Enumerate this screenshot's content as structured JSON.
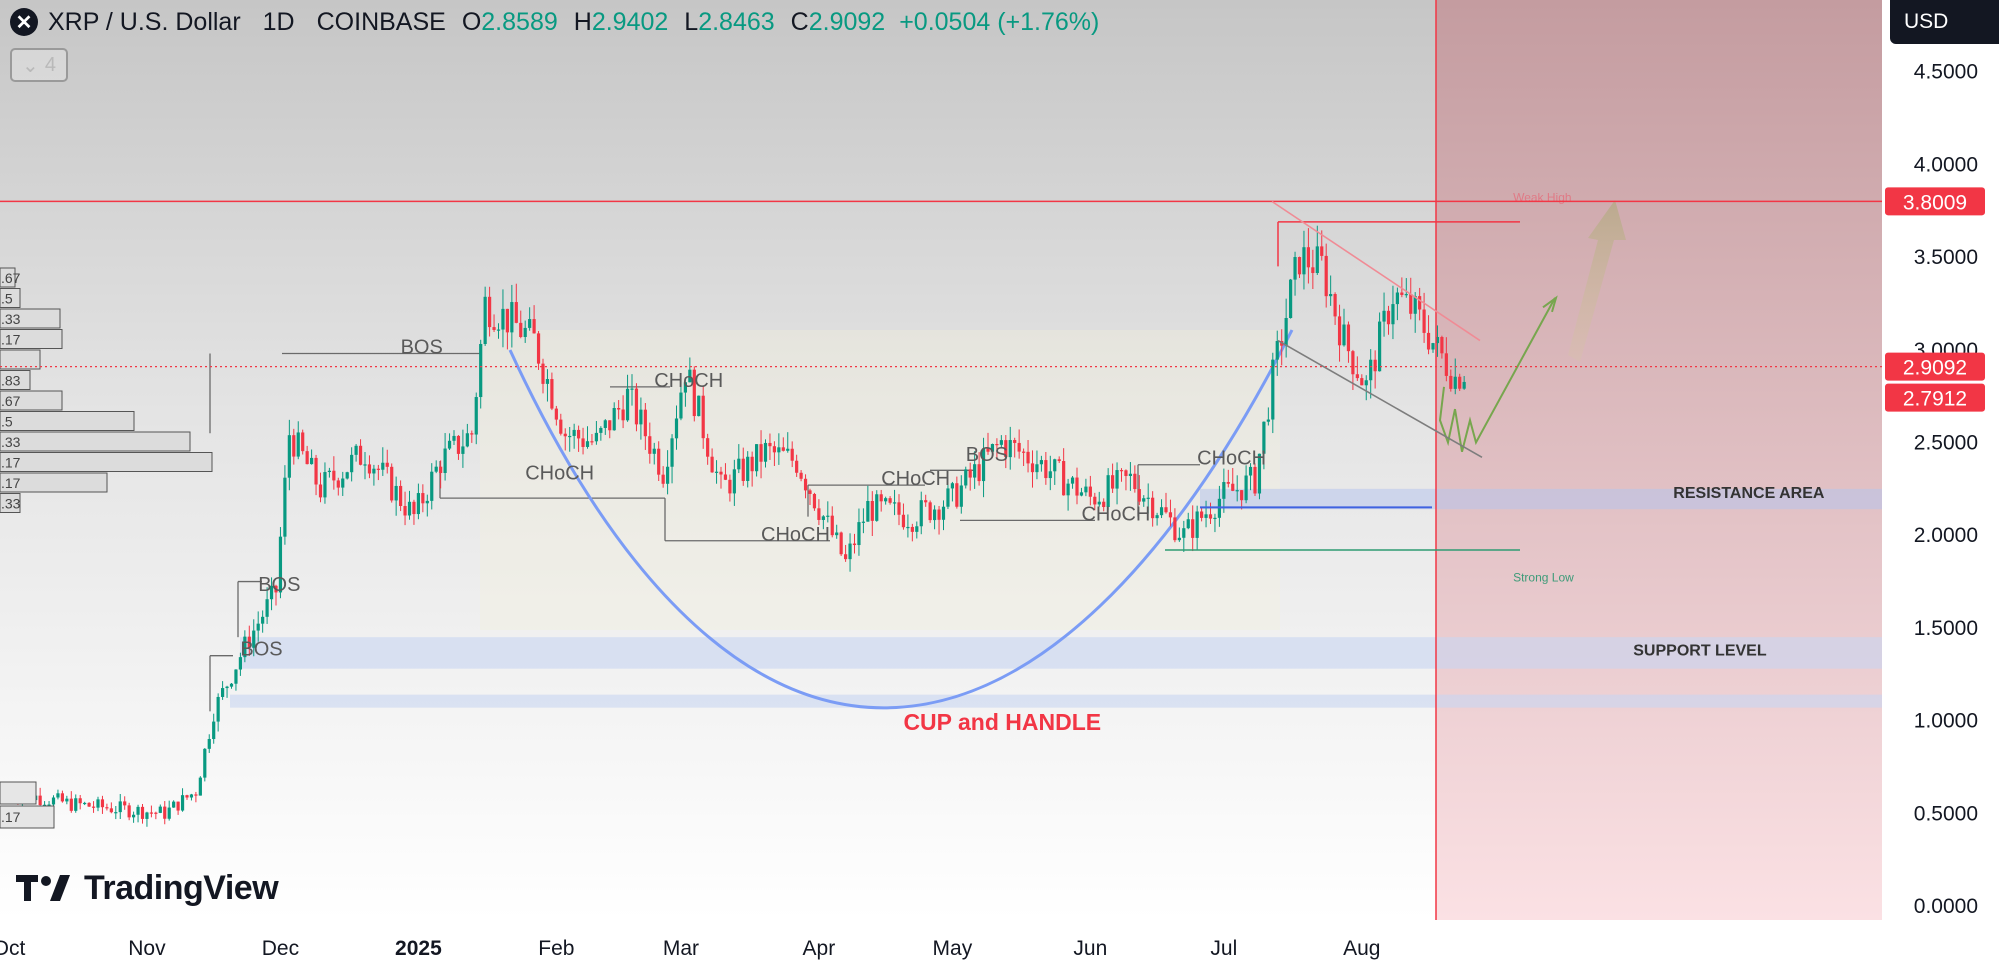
{
  "header": {
    "pair": "XRP / U.S. Dollar",
    "interval": "1D",
    "exchange": "COINBASE",
    "open_label": "O",
    "open": "2.8589",
    "high_label": "H",
    "high": "2.9402",
    "low_label": "L",
    "low": "2.8463",
    "close_label": "C",
    "close": "2.9092",
    "change": "+0.0504 (+1.76%)",
    "indicator_count": "4",
    "currency": "USD"
  },
  "brand": "TradingView",
  "colors": {
    "up": "#089981",
    "down": "#f23645",
    "accent_red": "#f23645",
    "cup_curve": "#7b9cf5",
    "projection": "#77a64e",
    "resistance_band": "#aab8e8"
  },
  "icons": [
    "xrp-logo-icon",
    "chevron-down-icon",
    "tradingview-logo-icon"
  ],
  "chart_data": {
    "type": "candlestick",
    "title": "",
    "x_ticks": [
      "Oct",
      "Nov",
      "Dec",
      "2025",
      "Feb",
      "Mar",
      "Apr",
      "May",
      "Jun",
      "Jul",
      "Aug"
    ],
    "y_ticks": [
      "0.0000",
      "0.5000",
      "1.0000",
      "1.5000",
      "2.0000",
      "2.5000",
      "3.0000",
      "3.5000",
      "4.0000",
      "4.5000"
    ],
    "ylim": [
      0,
      4.8
    ],
    "price_path": [
      [
        "2024-10-01",
        0.62
      ],
      [
        "2024-10-15",
        0.55
      ],
      [
        "2024-11-05",
        0.5
      ],
      [
        "2024-11-12",
        0.62
      ],
      [
        "2024-11-16",
        1.05
      ],
      [
        "2024-11-23",
        1.4
      ],
      [
        "2024-11-30",
        1.7
      ],
      [
        "2024-12-03",
        2.55
      ],
      [
        "2024-12-10",
        2.25
      ],
      [
        "2024-12-20",
        2.45
      ],
      [
        "2024-12-31",
        2.1
      ],
      [
        "2025-01-06",
        2.4
      ],
      [
        "2025-01-13",
        2.55
      ],
      [
        "2025-01-16",
        3.25
      ],
      [
        "2025-01-22",
        3.15
      ],
      [
        "2025-01-27",
        3.05
      ],
      [
        "2025-02-03",
        2.55
      ],
      [
        "2025-02-10",
        2.5
      ],
      [
        "2025-02-17",
        2.75
      ],
      [
        "2025-02-25",
        2.35
      ],
      [
        "2025-03-02",
        2.9
      ],
      [
        "2025-03-10",
        2.25
      ],
      [
        "2025-03-20",
        2.45
      ],
      [
        "2025-03-27",
        2.4
      ],
      [
        "2025-04-07",
        1.85
      ],
      [
        "2025-04-12",
        2.15
      ],
      [
        "2025-04-22",
        2.1
      ],
      [
        "2025-05-01",
        2.2
      ],
      [
        "2025-05-12",
        2.5
      ],
      [
        "2025-05-20",
        2.4
      ],
      [
        "2025-06-01",
        2.2
      ],
      [
        "2025-06-10",
        2.3
      ],
      [
        "2025-06-22",
        2.0
      ],
      [
        "2025-06-30",
        2.2
      ],
      [
        "2025-07-08",
        2.3
      ],
      [
        "2025-07-12",
        2.85
      ],
      [
        "2025-07-16",
        3.3
      ],
      [
        "2025-07-18",
        3.5
      ],
      [
        "2025-07-23",
        3.45
      ],
      [
        "2025-07-28",
        3.05
      ],
      [
        "2025-08-02",
        2.8
      ],
      [
        "2025-08-08",
        3.3
      ],
      [
        "2025-08-13",
        3.2
      ],
      [
        "2025-08-18",
        3.0
      ],
      [
        "2025-08-22",
        2.85
      ],
      [
        "2025-08-25",
        2.91
      ]
    ],
    "price_labels": [
      {
        "value": 3.8009,
        "text": "3.8009"
      },
      {
        "value": 2.9092,
        "text": "2.9092"
      },
      {
        "value": 2.7912,
        "text": "2.7912"
      }
    ],
    "annotations": [
      {
        "text": "BOS",
        "date": "2024-12-28",
        "value": 2.98
      },
      {
        "text": "BOS",
        "date": "2024-11-26",
        "value": 1.7
      },
      {
        "text": "BOS",
        "date": "2024-11-22",
        "value": 1.35
      },
      {
        "text": "CHoCH",
        "date": "2025-01-25",
        "value": 2.3
      },
      {
        "text": "CHoCH",
        "date": "2025-02-23",
        "value": 2.8
      },
      {
        "text": "CHoCH",
        "date": "2025-03-19",
        "value": 1.97
      },
      {
        "text": "CHoCH",
        "date": "2025-04-15",
        "value": 2.27
      },
      {
        "text": "BOS",
        "date": "2025-05-04",
        "value": 2.4
      },
      {
        "text": "CHoCH",
        "date": "2025-05-30",
        "value": 2.08
      },
      {
        "text": "CHoCH",
        "date": "2025-06-25",
        "value": 2.38
      },
      {
        "text": "Weak High",
        "date": "2025-09-04",
        "value": 3.8
      },
      {
        "text": "Strong Low",
        "date": "2025-09-04",
        "value": 1.75
      },
      {
        "text": "RESISTANCE AREA",
        "date": "2025-10-10",
        "value": 2.2
      },
      {
        "text": "SUPPORT LEVEL",
        "date": "2025-10-01",
        "value": 1.35
      },
      {
        "text": "CUP and HANDLE",
        "date": "2025-04-20",
        "value": 0.95
      }
    ],
    "volume_profile_labels": [
      ".67",
      ".5",
      ".33",
      ".17",
      "",
      ".83",
      ".67",
      ".5",
      ".33",
      ".17",
      ".17",
      ".33",
      ".17"
    ],
    "zones": [
      {
        "name": "RESISTANCE AREA",
        "y": [
          2.14,
          2.25
        ]
      },
      {
        "name": "SUPPORT LEVEL",
        "y": [
          1.28,
          1.45
        ]
      },
      {
        "name": "support-band-lower",
        "y": [
          1.07,
          1.14
        ]
      }
    ],
    "grid": false,
    "legend": "none"
  }
}
